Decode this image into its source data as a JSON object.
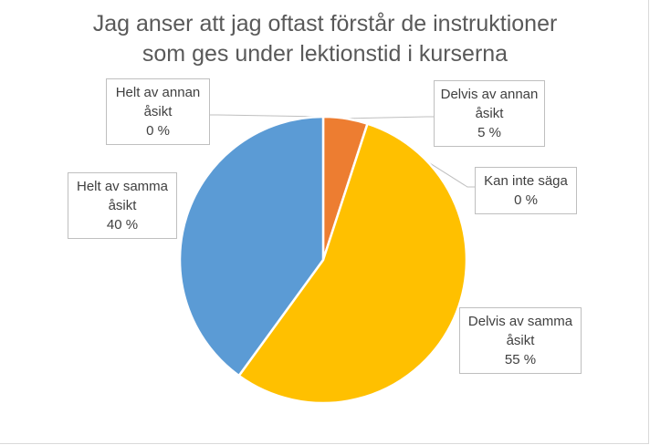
{
  "chart_data": {
    "type": "pie",
    "title_lines": [
      "Jag anser att jag oftast förstår de instruktioner",
      "som ges under lektionstid i kurserna"
    ],
    "categories": [
      "Delvis av annan åsikt",
      "Kan inte säga",
      "Delvis av samma åsikt",
      "Helt av samma åsikt",
      "Helt av annan åsikt"
    ],
    "values": [
      5,
      0,
      55,
      40,
      0
    ],
    "colors": [
      "#ED7D31",
      "#A5A5A5",
      "#FFC000",
      "#5B9BD5",
      "#4472C4"
    ],
    "labels": [
      {
        "lines": [
          "Delvis av annan",
          "åsikt"
        ],
        "value": "5 %"
      },
      {
        "lines": [
          "Kan inte säga"
        ],
        "value": "0 %"
      },
      {
        "lines": [
          "Delvis av samma",
          "åsikt"
        ],
        "value": "55 %"
      },
      {
        "lines": [
          "Helt av samma",
          "åsikt"
        ],
        "value": "40 %"
      },
      {
        "lines": [
          "Helt av annan",
          "åsikt"
        ],
        "value": "0 %"
      }
    ],
    "start_angle": "12 o'clock",
    "direction": "clockwise",
    "legend": "none"
  }
}
